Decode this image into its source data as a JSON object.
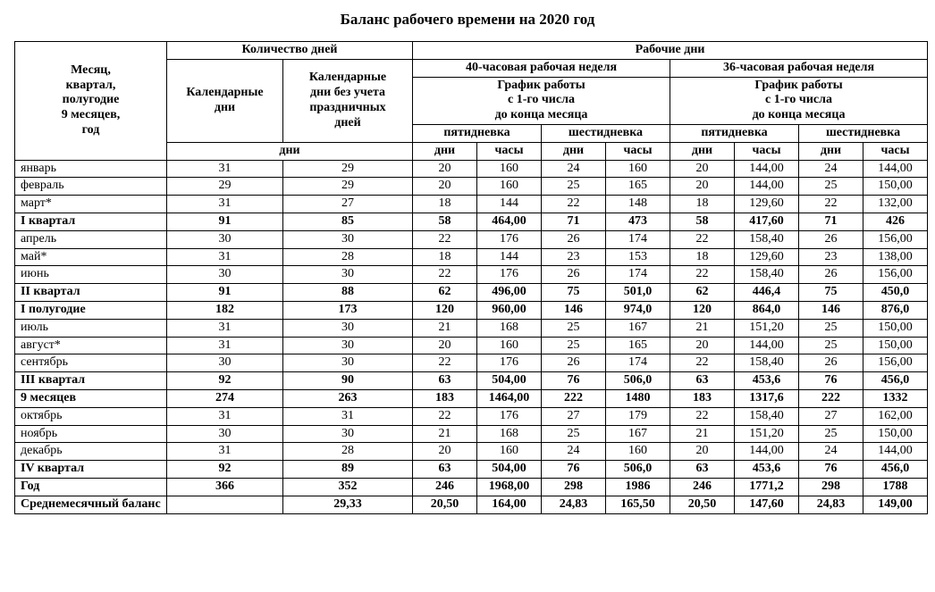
{
  "title": "Баланс рабочего времени на 2020 год",
  "header": {
    "period": "Месяц,\nквартал,\nполугодие\n9 месяцев,\nгод",
    "days_group": "Количество дней",
    "cal_days": "Календарные\nдни",
    "cal_days_noholiday": "Календарные\nдни без учета\nпраздничных\nдней",
    "days_unit": "дни",
    "work_days_group": "Рабочие дни",
    "week40": "40-часовая рабочая неделя",
    "week36": "36-часовая рабочая неделя",
    "schedule": "График работы\nс 1-го числа\nдо конца месяца",
    "five": "пятидневка",
    "six": "шестидневка",
    "col_days": "дни",
    "col_hours": "часы"
  },
  "rows": [
    {
      "label": "январь",
      "bold": false,
      "cal": "31",
      "calnh": "29",
      "d40_5": "20",
      "h40_5": "160",
      "d40_6": "24",
      "h40_6": "160",
      "d36_5": "20",
      "h36_5": "144,00",
      "d36_6": "24",
      "h36_6": "144,00"
    },
    {
      "label": "февраль",
      "bold": false,
      "cal": "29",
      "calnh": "29",
      "d40_5": "20",
      "h40_5": "160",
      "d40_6": "25",
      "h40_6": "165",
      "d36_5": "20",
      "h36_5": "144,00",
      "d36_6": "25",
      "h36_6": "150,00"
    },
    {
      "label": "март*",
      "bold": false,
      "cal": "31",
      "calnh": "27",
      "d40_5": "18",
      "h40_5": "144",
      "d40_6": "22",
      "h40_6": "148",
      "d36_5": "18",
      "h36_5": "129,60",
      "d36_6": "22",
      "h36_6": "132,00"
    },
    {
      "label": "I квартал",
      "bold": true,
      "cal": "91",
      "calnh": "85",
      "d40_5": "58",
      "h40_5": "464,00",
      "d40_6": "71",
      "h40_6": "473",
      "d36_5": "58",
      "h36_5": "417,60",
      "d36_6": "71",
      "h36_6": "426"
    },
    {
      "label": "апрель",
      "bold": false,
      "cal": "30",
      "calnh": "30",
      "d40_5": "22",
      "h40_5": "176",
      "d40_6": "26",
      "h40_6": "174",
      "d36_5": "22",
      "h36_5": "158,40",
      "d36_6": "26",
      "h36_6": "156,00"
    },
    {
      "label": "май*",
      "bold": false,
      "cal": "31",
      "calnh": "28",
      "d40_5": "18",
      "h40_5": "144",
      "d40_6": "23",
      "h40_6": "153",
      "d36_5": "18",
      "h36_5": "129,60",
      "d36_6": "23",
      "h36_6": "138,00"
    },
    {
      "label": "июнь",
      "bold": false,
      "cal": "30",
      "calnh": "30",
      "d40_5": "22",
      "h40_5": "176",
      "d40_6": "26",
      "h40_6": "174",
      "d36_5": "22",
      "h36_5": "158,40",
      "d36_6": "26",
      "h36_6": "156,00"
    },
    {
      "label": "II квартал",
      "bold": true,
      "cal": "91",
      "calnh": "88",
      "d40_5": "62",
      "h40_5": "496,00",
      "d40_6": "75",
      "h40_6": "501,0",
      "d36_5": "62",
      "h36_5": "446,4",
      "d36_6": "75",
      "h36_6": "450,0"
    },
    {
      "label": "I полугодие",
      "bold": true,
      "cal": "182",
      "calnh": "173",
      "d40_5": "120",
      "h40_5": "960,00",
      "d40_6": "146",
      "h40_6": "974,0",
      "d36_5": "120",
      "h36_5": "864,0",
      "d36_6": "146",
      "h36_6": "876,0"
    },
    {
      "label": "июль",
      "bold": false,
      "cal": "31",
      "calnh": "30",
      "d40_5": "21",
      "h40_5": "168",
      "d40_6": "25",
      "h40_6": "167",
      "d36_5": "21",
      "h36_5": "151,20",
      "d36_6": "25",
      "h36_6": "150,00"
    },
    {
      "label": "август*",
      "bold": false,
      "cal": "31",
      "calnh": "30",
      "d40_5": "20",
      "h40_5": "160",
      "d40_6": "25",
      "h40_6": "165",
      "d36_5": "20",
      "h36_5": "144,00",
      "d36_6": "25",
      "h36_6": "150,00"
    },
    {
      "label": "сентябрь",
      "bold": false,
      "cal": "30",
      "calnh": "30",
      "d40_5": "22",
      "h40_5": "176",
      "d40_6": "26",
      "h40_6": "174",
      "d36_5": "22",
      "h36_5": "158,40",
      "d36_6": "26",
      "h36_6": "156,00"
    },
    {
      "label": "III квартал",
      "bold": true,
      "cal": "92",
      "calnh": "90",
      "d40_5": "63",
      "h40_5": "504,00",
      "d40_6": "76",
      "h40_6": "506,0",
      "d36_5": "63",
      "h36_5": "453,6",
      "d36_6": "76",
      "h36_6": "456,0"
    },
    {
      "label": "9 месяцев",
      "bold": true,
      "cal": "274",
      "calnh": "263",
      "d40_5": "183",
      "h40_5": "1464,00",
      "d40_6": "222",
      "h40_6": "1480",
      "d36_5": "183",
      "h36_5": "1317,6",
      "d36_6": "222",
      "h36_6": "1332"
    },
    {
      "label": "октябрь",
      "bold": false,
      "cal": "31",
      "calnh": "31",
      "d40_5": "22",
      "h40_5": "176",
      "d40_6": "27",
      "h40_6": "179",
      "d36_5": "22",
      "h36_5": "158,40",
      "d36_6": "27",
      "h36_6": "162,00"
    },
    {
      "label": "ноябрь",
      "bold": false,
      "cal": "30",
      "calnh": "30",
      "d40_5": "21",
      "h40_5": "168",
      "d40_6": "25",
      "h40_6": "167",
      "d36_5": "21",
      "h36_5": "151,20",
      "d36_6": "25",
      "h36_6": "150,00"
    },
    {
      "label": "декабрь",
      "bold": false,
      "cal": "31",
      "calnh": "28",
      "d40_5": "20",
      "h40_5": "160",
      "d40_6": "24",
      "h40_6": "160",
      "d36_5": "20",
      "h36_5": "144,00",
      "d36_6": "24",
      "h36_6": "144,00"
    },
    {
      "label": "IV квартал",
      "bold": true,
      "cal": "92",
      "calnh": "89",
      "d40_5": "63",
      "h40_5": "504,00",
      "d40_6": "76",
      "h40_6": "506,0",
      "d36_5": "63",
      "h36_5": "453,6",
      "d36_6": "76",
      "h36_6": "456,0"
    },
    {
      "label": "Год",
      "bold": true,
      "cal": "366",
      "calnh": "352",
      "d40_5": "246",
      "h40_5": "1968,00",
      "d40_6": "298",
      "h40_6": "1986",
      "d36_5": "246",
      "h36_5": "1771,2",
      "d36_6": "298",
      "h36_6": "1788"
    },
    {
      "label": "Среднемесячный баланс",
      "bold": true,
      "cal": "",
      "calnh": "29,33",
      "d40_5": "20,50",
      "h40_5": "164,00",
      "d40_6": "24,83",
      "h40_6": "165,50",
      "d36_5": "20,50",
      "h36_5": "147,60",
      "d36_6": "24,83",
      "h36_6": "149,00"
    }
  ]
}
